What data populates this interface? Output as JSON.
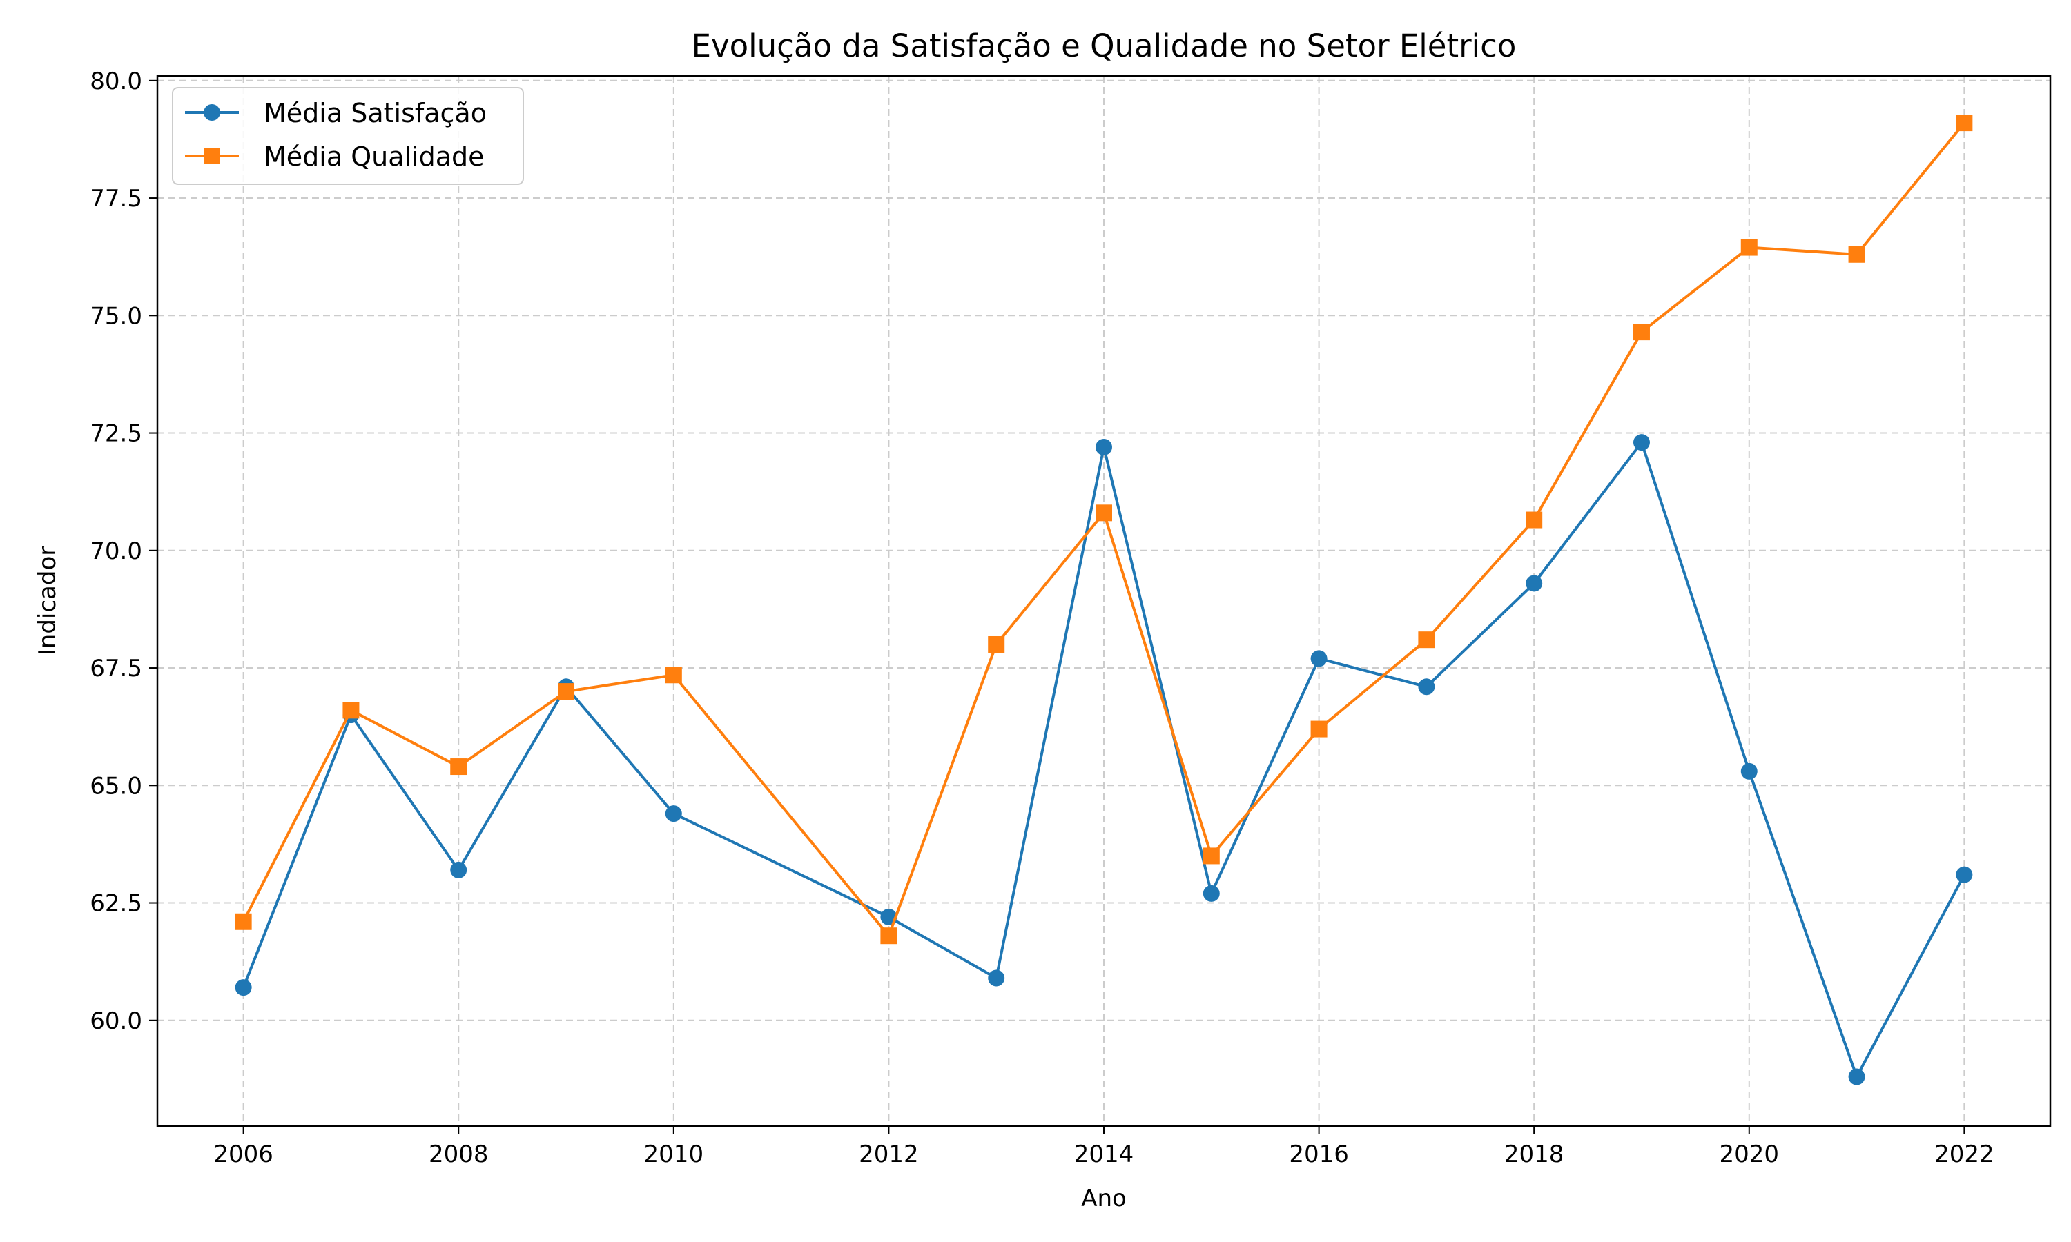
{
  "chart_data": {
    "type": "line",
    "title": "Evolução da Satisfação e Qualidade no Setor Elétrico",
    "xlabel": "Ano",
    "ylabel": "Indicador",
    "xlim": [
      2005.2,
      2022.8
    ],
    "ylim": [
      57.75,
      80.1
    ],
    "xticks": [
      2006,
      2008,
      2010,
      2012,
      2014,
      2016,
      2018,
      2020,
      2022
    ],
    "yticks": [
      60.0,
      62.5,
      65.0,
      67.5,
      70.0,
      72.5,
      75.0,
      77.5,
      80.0
    ],
    "ytick_labels": [
      "60.0",
      "62.5",
      "65.0",
      "67.5",
      "70.0",
      "72.5",
      "75.0",
      "77.5",
      "80.0"
    ],
    "grid": true,
    "legend_position": "upper-left",
    "series": [
      {
        "name": "Média Satisfação",
        "color": "#1f77b4",
        "marker": "circle",
        "points": [
          [
            2006,
            60.7
          ],
          [
            2007,
            66.5
          ],
          [
            2008,
            63.2
          ],
          [
            2009,
            67.1
          ],
          [
            2010,
            64.4
          ],
          [
            2012,
            62.2
          ],
          [
            2013,
            60.9
          ],
          [
            2014,
            72.2
          ],
          [
            2015,
            62.7
          ],
          [
            2016,
            67.7
          ],
          [
            2017,
            67.1
          ],
          [
            2018,
            69.3
          ],
          [
            2019,
            72.3
          ],
          [
            2020,
            65.3
          ],
          [
            2021,
            58.8
          ],
          [
            2022,
            63.1
          ]
        ]
      },
      {
        "name": "Média Qualidade",
        "color": "#ff7f0e",
        "marker": "square",
        "points": [
          [
            2006,
            62.1
          ],
          [
            2007,
            66.6
          ],
          [
            2008,
            65.4
          ],
          [
            2009,
            67.0
          ],
          [
            2010,
            67.35
          ],
          [
            2012,
            61.8
          ],
          [
            2013,
            68.0
          ],
          [
            2014,
            70.8
          ],
          [
            2015,
            63.5
          ],
          [
            2016,
            66.2
          ],
          [
            2017,
            68.1
          ],
          [
            2018,
            70.65
          ],
          [
            2019,
            74.65
          ],
          [
            2020,
            76.45
          ],
          [
            2021,
            76.3
          ],
          [
            2022,
            79.1
          ]
        ]
      }
    ]
  }
}
